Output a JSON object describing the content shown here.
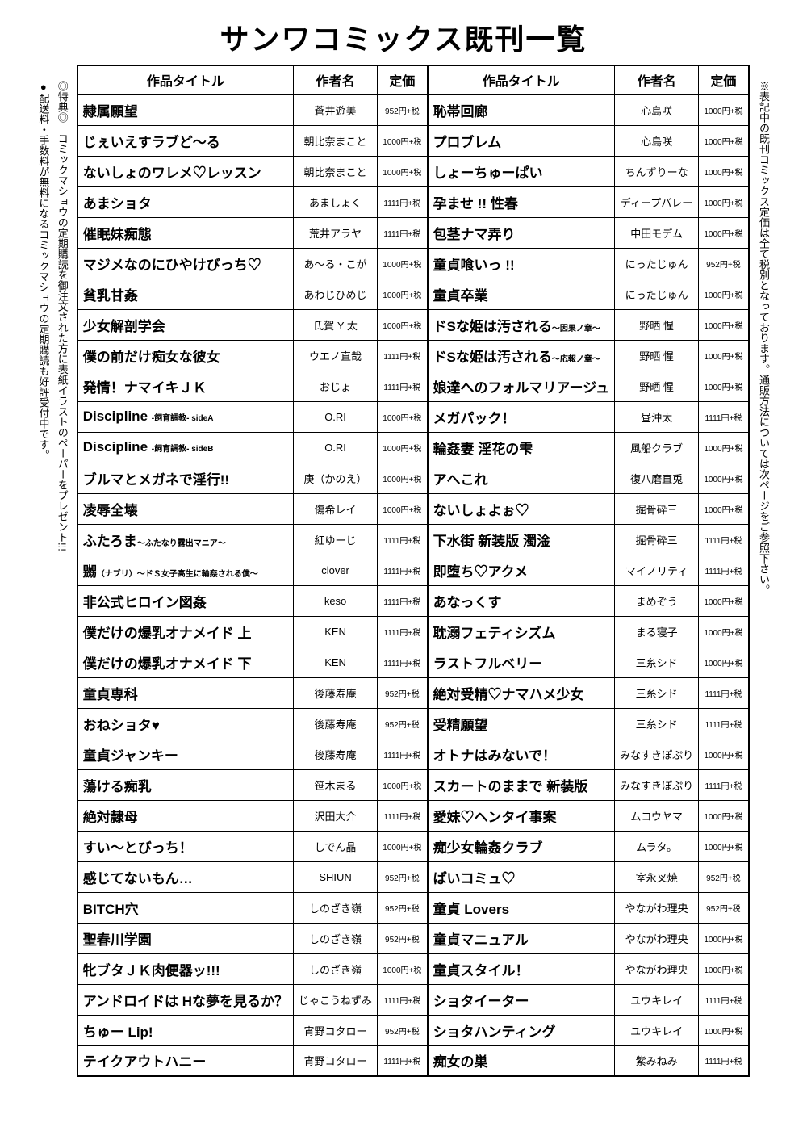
{
  "page_title": "サンワコミックス既刊一覧",
  "side_left_lines": [
    "◎特典◎　コミックマショウの定期購読を御注文された方に表紙イラストのペーパーをプレゼント!!!",
    "●配送料・手数料が無料になるコミックマショウの定期購読も好評受付中です。"
  ],
  "side_right": "※表記中の既刊コミックス定価は全て税別となっております。通販方法については次ページをご参照下さい。",
  "headers": {
    "title": "作品タイトル",
    "author": "作者名",
    "price": "定価"
  },
  "rows": [
    {
      "l_title": "隷属願望",
      "l_sub": "",
      "l_author": "蒼井遊美",
      "l_price": "952円+税",
      "r_title": "恥帯回廊",
      "r_sub": "",
      "r_author": "心島咲",
      "r_price": "1000円+税"
    },
    {
      "l_title": "じぇいえすラブど〜る",
      "l_sub": "",
      "l_author": "朝比奈まこと",
      "l_price": "1000円+税",
      "r_title": "プロブレム",
      "r_sub": "",
      "r_author": "心島咲",
      "r_price": "1000円+税"
    },
    {
      "l_title": "ないしょのワレメ♡レッスン",
      "l_sub": "",
      "l_author": "朝比奈まこと",
      "l_price": "1000円+税",
      "r_title": "しょーちゅーぱい",
      "r_sub": "",
      "r_author": "ちんずりーな",
      "r_price": "1000円+税"
    },
    {
      "l_title": "あまショタ",
      "l_sub": "",
      "l_author": "あましょく",
      "l_price": "1111円+税",
      "r_title": "孕ませ !! 性春",
      "r_sub": "",
      "r_author": "ディープバレー",
      "r_price": "1000円+税"
    },
    {
      "l_title": "催眠妹痴態",
      "l_sub": "",
      "l_author": "荒井アラヤ",
      "l_price": "1111円+税",
      "r_title": "包茎ナマ弄り",
      "r_sub": "",
      "r_author": "中田モデム",
      "r_price": "1000円+税"
    },
    {
      "l_title": "マジメなのにひやけびっち♡",
      "l_sub": "",
      "l_author": "あ〜る・こが",
      "l_price": "1000円+税",
      "r_title": "童貞喰いっ !!",
      "r_sub": "",
      "r_author": "にったじゅん",
      "r_price": "952円+税"
    },
    {
      "l_title": "貧乳甘姦",
      "l_sub": "",
      "l_author": "あわじひめじ",
      "l_price": "1000円+税",
      "r_title": "童貞卒業",
      "r_sub": "",
      "r_author": "にったじゅん",
      "r_price": "1000円+税"
    },
    {
      "l_title": "少女解剖学会",
      "l_sub": "",
      "l_author": "氏賀 Y 太",
      "l_price": "1000円+税",
      "r_title": "ドSな姫は汚される",
      "r_sub": "〜因果ノ章〜",
      "r_author": "野晒 惺",
      "r_price": "1000円+税"
    },
    {
      "l_title": "僕の前だけ痴女な彼女",
      "l_sub": "",
      "l_author": "ウエノ直哉",
      "l_price": "1111円+税",
      "r_title": "ドSな姫は汚される",
      "r_sub": "〜応報ノ章〜",
      "r_author": "野晒 惺",
      "r_price": "1000円+税"
    },
    {
      "l_title": "発情！ナマイキＪＫ",
      "l_sub": "",
      "l_author": "おじょ",
      "l_price": "1111円+税",
      "r_title": "娘達へのフォルマリアージュ",
      "r_sub": "",
      "r_author": "野晒 惺",
      "r_price": "1000円+税"
    },
    {
      "l_title": "Discipline ",
      "l_sub": "-飼育調教- sideA",
      "l_author": "O.RI",
      "l_price": "1000円+税",
      "r_title": "メガパック！",
      "r_sub": "",
      "r_author": "昼沖太",
      "r_price": "1111円+税"
    },
    {
      "l_title": "Discipline ",
      "l_sub": "-飼育調教- sideB",
      "l_author": "O.RI",
      "l_price": "1000円+税",
      "r_title": "輪姦妻 淫花の雫",
      "r_sub": "",
      "r_author": "風船クラブ",
      "r_price": "1000円+税"
    },
    {
      "l_title": "ブルマとメガネで淫行!!",
      "l_sub": "",
      "l_author": "庚（かのえ）",
      "l_price": "1000円+税",
      "r_title": "アへこれ",
      "r_sub": "",
      "r_author": "復八磨直兎",
      "r_price": "1000円+税"
    },
    {
      "l_title": "凌辱全壊",
      "l_sub": "",
      "l_author": "傷希レイ",
      "l_price": "1000円+税",
      "r_title": "ないしょよぉ♡",
      "r_sub": "",
      "r_author": "掘骨砕三",
      "r_price": "1000円+税"
    },
    {
      "l_title": "ふたろま",
      "l_sub": "〜ふたなり露出マニア〜",
      "l_author": "紅ゆーじ",
      "l_price": "1111円+税",
      "r_title": "下水街 新装版 濁淦",
      "r_sub": "",
      "r_author": "掘骨砕三",
      "r_price": "1111円+税"
    },
    {
      "l_title": "嬲",
      "l_sub": "（ナブリ）〜ドＳ女子高生に輪姦される僕〜",
      "l_author": "clover",
      "l_price": "1111円+税",
      "r_title": "即堕ち♡アクメ",
      "r_sub": "",
      "r_author": "マイノリティ",
      "r_price": "1111円+税"
    },
    {
      "l_title": "非公式ヒロイン図姦",
      "l_sub": "",
      "l_author": "keso",
      "l_price": "1111円+税",
      "r_title": "あなっくす",
      "r_sub": "",
      "r_author": "まめぞう",
      "r_price": "1000円+税"
    },
    {
      "l_title": "僕だけの爆乳オナメイド 上",
      "l_sub": "",
      "l_author": "KEN",
      "l_price": "1111円+税",
      "r_title": "耽溺フェティシズム",
      "r_sub": "",
      "r_author": "まる寝子",
      "r_price": "1000円+税"
    },
    {
      "l_title": "僕だけの爆乳オナメイド 下",
      "l_sub": "",
      "l_author": "KEN",
      "l_price": "1111円+税",
      "r_title": "ラストフルベリー",
      "r_sub": "",
      "r_author": "三糸シド",
      "r_price": "1000円+税"
    },
    {
      "l_title": "童貞専科",
      "l_sub": "",
      "l_author": "後藤寿庵",
      "l_price": "952円+税",
      "r_title": "絶対受精♡ナマハメ少女",
      "r_sub": "",
      "r_author": "三糸シド",
      "r_price": "1111円+税"
    },
    {
      "l_title": "おねショタ♥",
      "l_sub": "",
      "l_author": "後藤寿庵",
      "l_price": "952円+税",
      "r_title": "受精願望",
      "r_sub": "",
      "r_author": "三糸シド",
      "r_price": "1111円+税"
    },
    {
      "l_title": "童貞ジャンキー",
      "l_sub": "",
      "l_author": "後藤寿庵",
      "l_price": "1111円+税",
      "r_title": "オトナはみないで！",
      "r_sub": "",
      "r_author": "みなすきぽぷり",
      "r_price": "1000円+税"
    },
    {
      "l_title": "蕩ける痴乳",
      "l_sub": "",
      "l_author": "笹木まる",
      "l_price": "1000円+税",
      "r_title": "スカートのままで 新装版",
      "r_sub": "",
      "r_author": "みなすきぽぷり",
      "r_price": "1111円+税"
    },
    {
      "l_title": "絶対隷母",
      "l_sub": "",
      "l_author": "沢田大介",
      "l_price": "1111円+税",
      "r_title": "愛妹♡ヘンタイ事案",
      "r_sub": "",
      "r_author": "ムコウヤマ",
      "r_price": "1000円+税"
    },
    {
      "l_title": "すい〜とびっち！",
      "l_sub": "",
      "l_author": "しでん晶",
      "l_price": "1000円+税",
      "r_title": "痴少女輪姦クラブ",
      "r_sub": "",
      "r_author": "ムラタ。",
      "r_price": "1000円+税"
    },
    {
      "l_title": "感じてないもん…",
      "l_sub": "",
      "l_author": "SHIUN",
      "l_price": "952円+税",
      "r_title": "ぱいコミュ♡",
      "r_sub": "",
      "r_author": "室永叉焼",
      "r_price": "952円+税"
    },
    {
      "l_title": "BITCH穴",
      "l_sub": "",
      "l_author": "しのざき嶺",
      "l_price": "952円+税",
      "r_title": "童貞 Lovers",
      "r_sub": "",
      "r_author": "やながわ理央",
      "r_price": "952円+税"
    },
    {
      "l_title": "聖春川学園",
      "l_sub": "",
      "l_author": "しのざき嶺",
      "l_price": "952円+税",
      "r_title": "童貞マニュアル",
      "r_sub": "",
      "r_author": "やながわ理央",
      "r_price": "1000円+税"
    },
    {
      "l_title": "牝ブタＪＫ肉便器ッ!!!",
      "l_sub": "",
      "l_author": "しのざき嶺",
      "l_price": "1000円+税",
      "r_title": "童貞スタイル！",
      "r_sub": "",
      "r_author": "やながわ理央",
      "r_price": "1000円+税"
    },
    {
      "l_title": "アンドロイドは Hな夢を見るか？",
      "l_sub": "",
      "l_author": "じゃこうねずみ",
      "l_price": "1111円+税",
      "r_title": "ショタイーター",
      "r_sub": "",
      "r_author": "ユウキレイ",
      "r_price": "1111円+税"
    },
    {
      "l_title": "ちゅー Lip!",
      "l_sub": "",
      "l_author": "宵野コタロー",
      "l_price": "952円+税",
      "r_title": "ショタハンティング",
      "r_sub": "",
      "r_author": "ユウキレイ",
      "r_price": "1000円+税"
    },
    {
      "l_title": "テイクアウトハニー",
      "l_sub": "",
      "l_author": "宵野コタロー",
      "l_price": "1111円+税",
      "r_title": "痴女の巣",
      "r_sub": "",
      "r_author": "紫みねみ",
      "r_price": "1111円+税"
    }
  ]
}
